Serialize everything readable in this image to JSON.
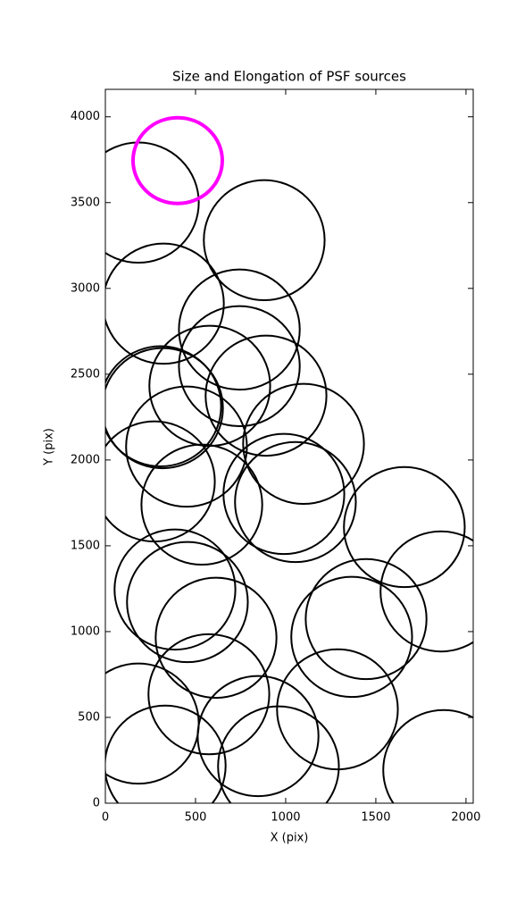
{
  "chart_data": {
    "type": "ellipse",
    "title": "Size and Elongation of PSF sources",
    "x_label": "X (pix)",
    "y_label": "Y (pix)",
    "xlim": [
      0,
      2040
    ],
    "ylim": [
      0,
      4160
    ],
    "xticks": [
      0,
      500,
      1000,
      1500,
      2000
    ],
    "yticks": [
      0,
      500,
      1000,
      1500,
      2000,
      2500,
      3000,
      3500,
      4000
    ],
    "series": [
      {
        "color": "#000000",
        "linewidth": 2,
        "x": [
          183,
          881,
          322,
          743,
          743,
          579,
          891,
          307,
          317,
          450,
          1099,
          272,
          535,
          990,
          1054,
          1658,
          1861,
          386,
          455,
          614,
          1446,
          1366,
          183,
          574,
          847,
          1287,
          332,
          960,
          1876
        ],
        "y": [
          3500,
          3281,
          2911,
          2760,
          2547,
          2432,
          2375,
          2313,
          2302,
          2078,
          2094,
          1875,
          1740,
          1802,
          1755,
          1609,
          1234,
          1245,
          1172,
          964,
          1073,
          969,
          464,
          635,
          391,
          547,
          219,
          214,
          193
        ],
        "width": [
          670,
          670,
          670,
          670,
          670,
          670,
          670,
          670,
          670,
          670,
          670,
          670,
          670,
          670,
          670,
          670,
          670,
          670,
          670,
          670,
          670,
          670,
          670,
          670,
          670,
          670,
          670,
          670,
          670
        ],
        "height": [
          700,
          700,
          700,
          700,
          700,
          700,
          700,
          700,
          700,
          700,
          700,
          700,
          700,
          700,
          700,
          700,
          700,
          700,
          700,
          700,
          700,
          700,
          700,
          700,
          700,
          700,
          700,
          700,
          700
        ]
      },
      {
        "color": "#ff00ff",
        "linewidth": 4,
        "x": [
          401
        ],
        "y": [
          3745
        ],
        "width": [
          495
        ],
        "height": [
          500
        ]
      }
    ]
  }
}
